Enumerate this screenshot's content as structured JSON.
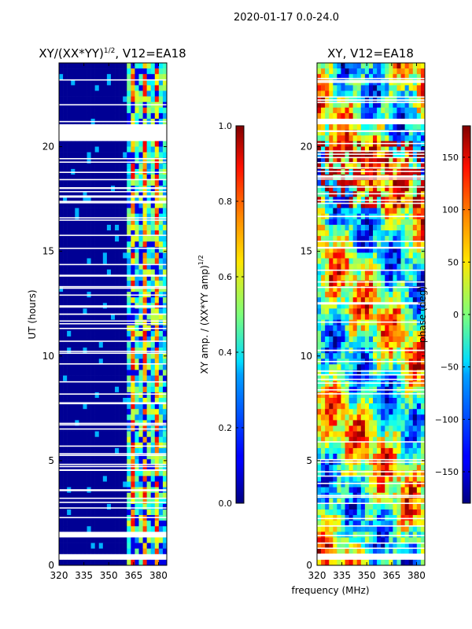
{
  "figure": {
    "suptitle": "2020-01-17 0.0-24.0",
    "xlabel": "frequency (MHz)"
  },
  "chart_data": [
    {
      "type": "heatmap",
      "title_main": "XY/(XX*YY)",
      "title_sup": "1/2",
      "title_rest": ", V12=EA18",
      "xlabel": "",
      "ylabel": "UT (hours)",
      "xlim": [
        320,
        385
      ],
      "ylim": [
        0,
        24
      ],
      "xticks": [
        320,
        335,
        350,
        365,
        380
      ],
      "yticks": [
        0,
        5,
        10,
        15,
        20
      ],
      "blank_hours": [
        [
          20.2,
          21.0
        ],
        [
          1.35,
          1.55
        ],
        [
          0.3,
          0.4
        ]
      ],
      "active_band_mhz": [
        360,
        385
      ],
      "colorbar": {
        "label_main": "XY amp. / (XX*YY amp)",
        "label_sup": "1/2",
        "range": [
          0.0,
          1.0
        ],
        "ticks": [
          "0.0",
          "0.2",
          "0.4",
          "0.6",
          "0.8",
          "1.0"
        ],
        "colormap": "jet"
      }
    },
    {
      "type": "heatmap",
      "title_main": "XY, V12=EA18",
      "title_sup": "",
      "title_rest": "",
      "xlabel": "",
      "ylabel": "",
      "xlim": [
        320,
        385
      ],
      "ylim": [
        0,
        24
      ],
      "xticks": [
        320,
        335,
        350,
        365,
        380
      ],
      "yticks": [
        0,
        5,
        10,
        15,
        20
      ],
      "blank_hours": [
        [
          21.0,
          21.2
        ],
        [
          0.3,
          0.4
        ]
      ],
      "colorbar": {
        "label_main": "phase (deg)",
        "label_sup": "",
        "range": [
          -180,
          180
        ],
        "ticks": [
          "−150",
          "−100",
          "−50",
          "0",
          "50",
          "100",
          "150"
        ],
        "colormap": "jet"
      }
    }
  ],
  "colors": {
    "low": "#000080",
    "high": "#800000"
  }
}
